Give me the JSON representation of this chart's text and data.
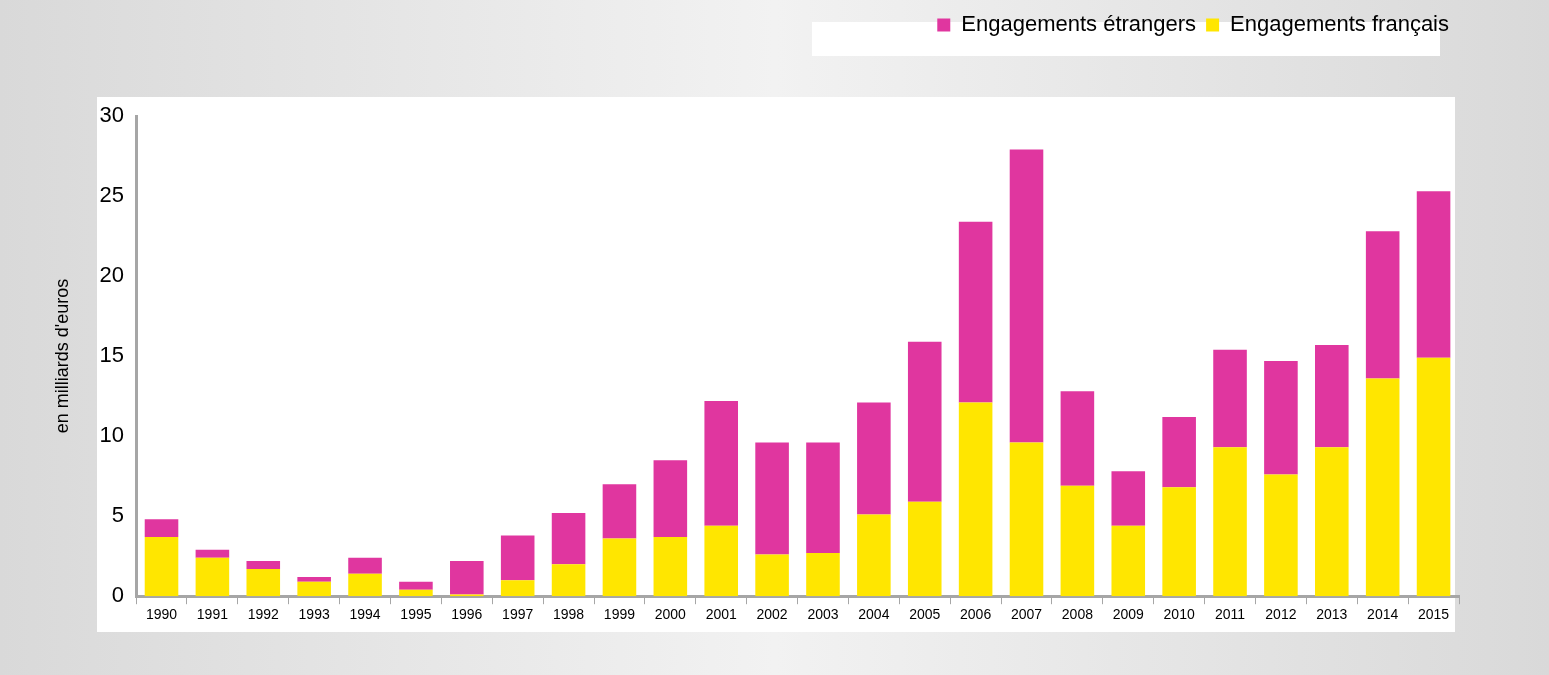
{
  "chart_data": {
    "type": "bar",
    "stacked": true,
    "ylabel": "en milliards d'euros",
    "categories": [
      "1990",
      "1991",
      "1992",
      "1993",
      "1994",
      "1995",
      "1996",
      "1997",
      "1998",
      "1999",
      "2000",
      "2001",
      "2002",
      "2003",
      "2004",
      "2005",
      "2006",
      "2007",
      "2008",
      "2009",
      "2010",
      "2011",
      "2012",
      "2013",
      "2014",
      "2015"
    ],
    "series": [
      {
        "name": "Engagements français",
        "color": "#ffe600",
        "values": [
          3.7,
          2.4,
          1.7,
          0.9,
          1.4,
          0.4,
          0.1,
          1.0,
          2.0,
          3.6,
          3.7,
          4.4,
          2.6,
          2.7,
          5.1,
          5.9,
          12.1,
          9.6,
          6.9,
          4.4,
          6.8,
          9.3,
          7.6,
          9.3,
          13.6,
          14.9
        ]
      },
      {
        "name": "Engagements étrangers",
        "color": "#e0369f",
        "values": [
          1.1,
          0.5,
          0.5,
          0.3,
          1.0,
          0.5,
          2.1,
          2.8,
          3.2,
          3.4,
          4.8,
          7.8,
          7.0,
          6.9,
          7.0,
          10.0,
          11.3,
          18.3,
          5.9,
          3.4,
          4.4,
          6.1,
          7.1,
          6.4,
          9.2,
          10.4
        ]
      }
    ],
    "ylim": [
      0,
      30
    ],
    "yticks": [
      0,
      5,
      10,
      15,
      20,
      25,
      30
    ],
    "grid": false,
    "legend": "top right"
  }
}
